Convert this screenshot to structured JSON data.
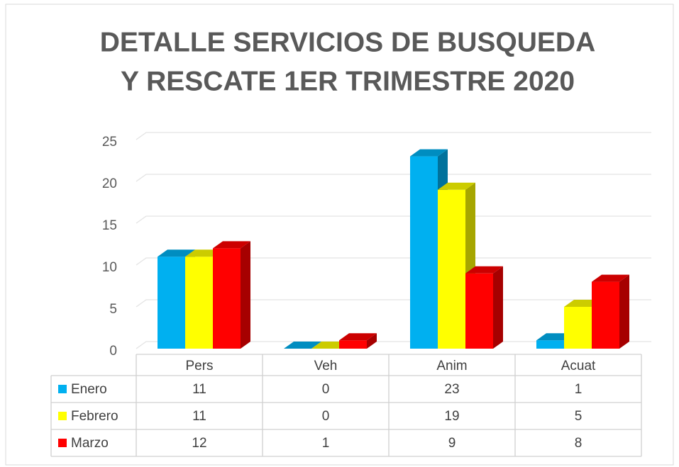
{
  "chart_data": {
    "type": "bar3d",
    "title": [
      "DETALLE SERVICIOS DE BUSQUEDA",
      "Y RESCATE 1ER TRIMESTRE 2020"
    ],
    "categories": [
      "Pers",
      "Veh",
      "Anim",
      "Acuat"
    ],
    "series": [
      {
        "name": "Enero",
        "color": "#00b0f0",
        "values": [
          11,
          0,
          23,
          1
        ]
      },
      {
        "name": "Febrero",
        "color": "#ffff00",
        "values": [
          11,
          0,
          19,
          5
        ]
      },
      {
        "name": "Marzo",
        "color": "#ff0000",
        "values": [
          12,
          1,
          9,
          8
        ]
      }
    ],
    "ylim": [
      0,
      25
    ],
    "yticks": [
      0,
      5,
      10,
      15,
      20,
      25
    ],
    "grid": true,
    "data_table": true
  }
}
